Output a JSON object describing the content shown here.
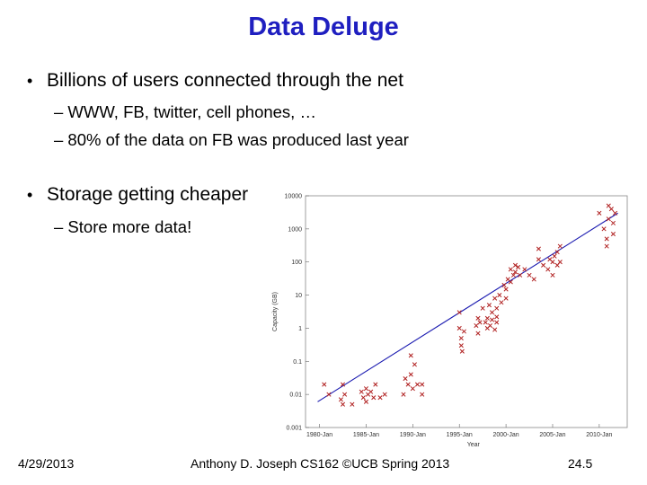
{
  "slide": {
    "title": "Data Deluge",
    "bullets": [
      {
        "text": "Billions of users connected through the net",
        "subs": [
          "– WWW, FB, twitter, cell phones, …",
          "– 80% of the data on FB was produced last year"
        ]
      },
      {
        "text": "Storage getting cheaper",
        "subs": [
          "– Store more data!"
        ]
      }
    ],
    "bullet_symbol": "•"
  },
  "footer": {
    "date": "4/29/2013",
    "author": "Anthony D. Joseph CS162 ©UCB Spring 2013",
    "page": "24.5"
  },
  "colors": {
    "title": "#1f1fc0",
    "points": "#b02020",
    "trend": "#1a1ab0"
  },
  "chart_data": {
    "type": "scatter",
    "xlabel": "Year",
    "ylabel": "Capacity (GB)",
    "scale": "log-y",
    "xlim": [
      1978.5,
      2013
    ],
    "ylim": [
      0.001,
      10000
    ],
    "xticks": [
      {
        "value": 1980,
        "label": "1980-Jan"
      },
      {
        "value": 1985,
        "label": "1985-Jan"
      },
      {
        "value": 1990,
        "label": "1990-Jan"
      },
      {
        "value": 1995,
        "label": "1995-Jan"
      },
      {
        "value": 2000,
        "label": "2000-Jan"
      },
      {
        "value": 2005,
        "label": "2005-Jan"
      },
      {
        "value": 2010,
        "label": "2010-Jan"
      }
    ],
    "yticks": [
      {
        "value": 0.001,
        "label": "0.001"
      },
      {
        "value": 0.01,
        "label": "0.01"
      },
      {
        "value": 0.1,
        "label": "0.1"
      },
      {
        "value": 1,
        "label": "1"
      },
      {
        "value": 10,
        "label": "10"
      },
      {
        "value": 100,
        "label": "100"
      },
      {
        "value": 1000,
        "label": "1000"
      },
      {
        "value": 10000,
        "label": "10000"
      }
    ],
    "trend": [
      [
        1979.8,
        0.006
      ],
      [
        2012,
        3000
      ]
    ],
    "series": [
      {
        "values": [
          [
            1980.5,
            0.02
          ],
          [
            1981,
            0.01
          ],
          [
            1982.5,
            0.02
          ],
          [
            1982.7,
            0.01
          ],
          [
            1982.5,
            0.005
          ],
          [
            1982.3,
            0.007
          ],
          [
            1983.5,
            0.005
          ],
          [
            1984.5,
            0.012
          ],
          [
            1984.7,
            0.008
          ],
          [
            1985,
            0.015
          ],
          [
            1985.2,
            0.01
          ],
          [
            1985,
            0.006
          ],
          [
            1985.5,
            0.012
          ],
          [
            1985.8,
            0.008
          ],
          [
            1986,
            0.02
          ],
          [
            1986.5,
            0.008
          ],
          [
            1987,
            0.01
          ],
          [
            1989,
            0.01
          ],
          [
            1989.2,
            0.03
          ],
          [
            1989.5,
            0.02
          ],
          [
            1989.8,
            0.04
          ],
          [
            1990,
            0.015
          ],
          [
            1990.2,
            0.08
          ],
          [
            1990.5,
            0.02
          ],
          [
            1991,
            0.02
          ],
          [
            1991,
            0.01
          ],
          [
            1989.8,
            0.15
          ],
          [
            1995,
            3
          ],
          [
            1995,
            1
          ],
          [
            1995.2,
            0.5
          ],
          [
            1995.3,
            0.2
          ],
          [
            1995.5,
            0.8
          ],
          [
            1995.2,
            0.3
          ],
          [
            1997,
            2
          ],
          [
            1997.2,
            1.5
          ],
          [
            1997.5,
            4
          ],
          [
            1998,
            2
          ],
          [
            1998,
            1
          ],
          [
            1998.2,
            5
          ],
          [
            1998.5,
            3
          ],
          [
            1998.8,
            8
          ],
          [
            1999,
            4
          ],
          [
            1999.3,
            10
          ],
          [
            1999.5,
            6
          ],
          [
            1999.8,
            20
          ],
          [
            2000,
            15
          ],
          [
            2000,
            8
          ],
          [
            2000.2,
            30
          ],
          [
            2000.5,
            25
          ],
          [
            2000.5,
            60
          ],
          [
            2000.8,
            40
          ],
          [
            2001,
            80
          ],
          [
            2001,
            50
          ],
          [
            2001.3,
            70
          ],
          [
            2001.5,
            40
          ],
          [
            2002,
            60
          ],
          [
            2002.5,
            40
          ],
          [
            2003,
            30
          ],
          [
            1996.8,
            1.2
          ],
          [
            1997,
            0.7
          ],
          [
            1997.8,
            1.5
          ],
          [
            1998.3,
            1.2
          ],
          [
            1998.5,
            1.8
          ],
          [
            1999,
            1.5
          ],
          [
            1999,
            2.2
          ],
          [
            1998.8,
            0.9
          ],
          [
            2004,
            80
          ],
          [
            2004.5,
            60
          ],
          [
            2005,
            100
          ],
          [
            2005.2,
            150
          ],
          [
            2005,
            40
          ],
          [
            2005.5,
            200
          ],
          [
            2005.8,
            300
          ],
          [
            2005.8,
            100
          ],
          [
            2004.7,
            120
          ],
          [
            2005.5,
            80
          ],
          [
            2003.5,
            250
          ],
          [
            2003.5,
            120
          ],
          [
            2010,
            3000
          ],
          [
            2011,
            5000
          ],
          [
            2011.5,
            1500
          ],
          [
            2011.5,
            700
          ],
          [
            2011.7,
            3000
          ],
          [
            2010.5,
            1000
          ],
          [
            2010.8,
            500
          ],
          [
            2010.8,
            300
          ],
          [
            2011,
            2000
          ],
          [
            2011.3,
            4000
          ]
        ]
      }
    ]
  }
}
